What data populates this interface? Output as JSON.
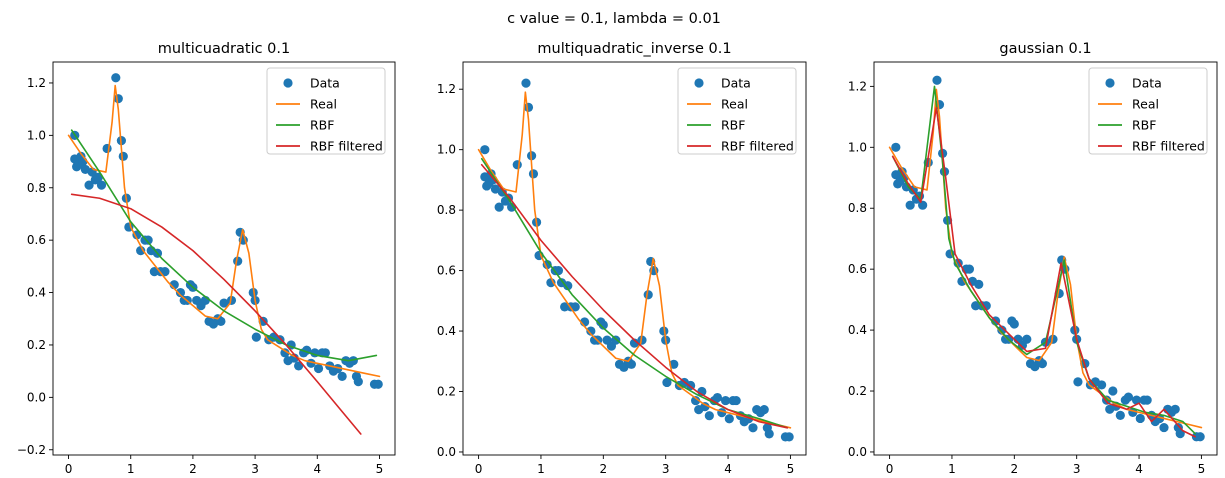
{
  "suptitle": "c value = 0.1, lambda = 0.01",
  "chart_data": [
    {
      "type": "line",
      "title": "multicuadratic 0.1",
      "xlim": [
        -0.25,
        5.25
      ],
      "ylim": [
        -0.22,
        1.28
      ],
      "xticks": [
        0,
        1,
        2,
        3,
        4,
        5
      ],
      "yticks": [
        -0.2,
        0.0,
        0.2,
        0.4,
        0.6,
        0.8,
        1.0,
        1.2
      ],
      "ytick_labels": [
        "−0.2",
        "0.0",
        "0.2",
        "0.4",
        "0.6",
        "0.8",
        "1.0",
        "1.2"
      ],
      "legend": {
        "position": "top-right",
        "entries": [
          "Data",
          "Real",
          "RBF",
          "RBF filtered"
        ]
      },
      "series": [
        {
          "name": "Data",
          "kind": "scatter",
          "color": "#1f77b4",
          "ref": "data"
        },
        {
          "name": "Real",
          "kind": "line",
          "color": "#ff7f0e",
          "ref": "real"
        },
        {
          "name": "RBF",
          "kind": "line",
          "color": "#2ca02c",
          "x": [
            0.05,
            0.5,
            1.0,
            1.5,
            2.0,
            2.5,
            3.0,
            3.5,
            4.0,
            4.5,
            4.95
          ],
          "y": [
            1.02,
            0.86,
            0.67,
            0.53,
            0.42,
            0.33,
            0.26,
            0.2,
            0.16,
            0.14,
            0.16
          ]
        },
        {
          "name": "RBF filtered",
          "kind": "line",
          "color": "#d62728",
          "x": [
            0.05,
            0.5,
            1.0,
            1.5,
            2.0,
            2.5,
            3.0,
            3.5,
            4.0,
            4.35,
            4.7
          ],
          "y": [
            0.775,
            0.76,
            0.72,
            0.65,
            0.56,
            0.45,
            0.33,
            0.2,
            0.06,
            -0.04,
            -0.14
          ]
        }
      ]
    },
    {
      "type": "line",
      "title": "multiquadratic_inverse 0.1",
      "xlim": [
        -0.25,
        5.25
      ],
      "ylim": [
        -0.01,
        1.29
      ],
      "xticks": [
        0,
        1,
        2,
        3,
        4,
        5
      ],
      "yticks": [
        0.0,
        0.2,
        0.4,
        0.6,
        0.8,
        1.0,
        1.2
      ],
      "ytick_labels": [
        "0.0",
        "0.2",
        "0.4",
        "0.6",
        "0.8",
        "1.0",
        "1.2"
      ],
      "legend": {
        "position": "top-right",
        "entries": [
          "Data",
          "Real",
          "RBF",
          "RBF filtered"
        ]
      },
      "series": [
        {
          "name": "Data",
          "kind": "scatter",
          "color": "#1f77b4",
          "ref": "data"
        },
        {
          "name": "Real",
          "kind": "line",
          "color": "#ff7f0e",
          "ref": "real"
        },
        {
          "name": "RBF",
          "kind": "line",
          "color": "#2ca02c",
          "x": [
            0.05,
            0.5,
            1.0,
            1.5,
            2.0,
            2.5,
            3.0,
            3.5,
            4.0,
            4.5,
            4.95
          ],
          "y": [
            0.97,
            0.83,
            0.66,
            0.52,
            0.41,
            0.32,
            0.25,
            0.19,
            0.14,
            0.11,
            0.08
          ]
        },
        {
          "name": "RBF filtered",
          "kind": "line",
          "color": "#d62728",
          "x": [
            0.05,
            0.5,
            1.0,
            1.5,
            2.0,
            2.5,
            3.0,
            3.5,
            4.0,
            4.5,
            4.95
          ],
          "y": [
            0.95,
            0.84,
            0.7,
            0.58,
            0.47,
            0.37,
            0.28,
            0.2,
            0.14,
            0.1,
            0.08
          ]
        }
      ]
    },
    {
      "type": "line",
      "title": "gaussian 0.1",
      "xlim": [
        -0.25,
        5.25
      ],
      "ylim": [
        -0.01,
        1.28
      ],
      "xticks": [
        0,
        1,
        2,
        3,
        4,
        5
      ],
      "yticks": [
        0.0,
        0.2,
        0.4,
        0.6,
        0.8,
        1.0,
        1.2
      ],
      "ytick_labels": [
        "0.0",
        "0.2",
        "0.4",
        "0.6",
        "0.8",
        "1.0",
        "1.2"
      ],
      "legend": {
        "position": "top-right",
        "entries": [
          "Data",
          "Real",
          "RBF",
          "RBF filtered"
        ]
      },
      "series": [
        {
          "name": "Data",
          "kind": "scatter",
          "color": "#1f77b4",
          "ref": "data"
        },
        {
          "name": "Real",
          "kind": "line",
          "color": "#ff7f0e",
          "ref": "real"
        },
        {
          "name": "RBF",
          "kind": "line",
          "color": "#2ca02c",
          "x": [
            0.05,
            0.3,
            0.5,
            0.72,
            0.85,
            0.95,
            1.05,
            1.3,
            1.6,
            1.9,
            2.2,
            2.5,
            2.8,
            3.0,
            3.2,
            3.5,
            3.8,
            4.1,
            4.4,
            4.7,
            4.9
          ],
          "y": [
            0.97,
            0.87,
            0.83,
            1.2,
            0.95,
            0.7,
            0.62,
            0.53,
            0.44,
            0.37,
            0.32,
            0.36,
            0.63,
            0.36,
            0.24,
            0.17,
            0.15,
            0.13,
            0.12,
            0.1,
            0.06
          ]
        },
        {
          "name": "RBF filtered",
          "kind": "line",
          "color": "#d62728",
          "x": [
            0.05,
            0.3,
            0.5,
            0.75,
            0.9,
            1.05,
            1.3,
            1.6,
            1.9,
            2.2,
            2.5,
            2.75,
            3.0,
            3.2,
            3.5,
            3.8,
            4.0,
            4.2,
            4.4,
            4.7,
            4.9
          ],
          "y": [
            0.97,
            0.88,
            0.82,
            1.13,
            0.9,
            0.65,
            0.55,
            0.45,
            0.39,
            0.33,
            0.34,
            0.62,
            0.37,
            0.24,
            0.16,
            0.14,
            0.16,
            0.1,
            0.14,
            0.07,
            0.05
          ]
        }
      ]
    }
  ],
  "shared": {
    "real": {
      "x": [
        0.0,
        0.2,
        0.4,
        0.6,
        0.7,
        0.75,
        0.8,
        0.9,
        1.0,
        1.2,
        1.4,
        1.6,
        1.8,
        2.0,
        2.2,
        2.4,
        2.6,
        2.7,
        2.8,
        2.9,
        3.0,
        3.1,
        3.2,
        3.4,
        3.6,
        3.8,
        4.0,
        4.2,
        4.4,
        4.6,
        4.8,
        5.0
      ],
      "y": [
        1.0,
        0.93,
        0.87,
        0.86,
        1.05,
        1.19,
        1.1,
        0.8,
        0.65,
        0.56,
        0.5,
        0.44,
        0.39,
        0.35,
        0.31,
        0.3,
        0.36,
        0.52,
        0.64,
        0.55,
        0.37,
        0.26,
        0.22,
        0.19,
        0.16,
        0.14,
        0.13,
        0.12,
        0.11,
        0.1,
        0.09,
        0.08
      ]
    },
    "data": {
      "x": [
        0.1,
        0.1,
        0.13,
        0.17,
        0.2,
        0.23,
        0.27,
        0.33,
        0.38,
        0.43,
        0.48,
        0.53,
        0.62,
        0.76,
        0.8,
        0.85,
        0.88,
        0.93,
        0.97,
        1.1,
        1.16,
        1.23,
        1.28,
        1.33,
        1.38,
        1.43,
        1.48,
        1.55,
        1.7,
        1.8,
        1.86,
        1.91,
        1.96,
        2.0,
        2.06,
        2.13,
        2.2,
        2.26,
        2.33,
        2.4,
        2.45,
        2.5,
        2.62,
        2.72,
        2.76,
        2.81,
        2.97,
        3.0,
        3.02,
        3.13,
        3.22,
        3.3,
        3.4,
        3.48,
        3.53,
        3.58,
        3.63,
        3.7,
        3.78,
        3.83,
        3.9,
        3.96,
        4.02,
        4.08,
        4.13,
        4.2,
        4.26,
        4.33,
        4.4,
        4.46,
        4.52,
        4.58,
        4.63,
        4.66,
        4.92,
        4.98
      ],
      "y": [
        1.0,
        0.91,
        0.88,
        0.89,
        0.92,
        0.9,
        0.87,
        0.81,
        0.86,
        0.83,
        0.84,
        0.81,
        0.95,
        1.22,
        1.14,
        0.98,
        0.92,
        0.76,
        0.65,
        0.62,
        0.56,
        0.6,
        0.6,
        0.56,
        0.48,
        0.55,
        0.48,
        0.48,
        0.43,
        0.4,
        0.37,
        0.37,
        0.43,
        0.42,
        0.37,
        0.35,
        0.37,
        0.29,
        0.28,
        0.3,
        0.29,
        0.36,
        0.37,
        0.52,
        0.63,
        0.6,
        0.4,
        0.37,
        0.23,
        0.29,
        0.22,
        0.23,
        0.22,
        0.17,
        0.14,
        0.2,
        0.15,
        0.12,
        0.17,
        0.18,
        0.13,
        0.17,
        0.11,
        0.17,
        0.17,
        0.12,
        0.1,
        0.11,
        0.08,
        0.14,
        0.13,
        0.14,
        0.08,
        0.06,
        0.05,
        0.05
      ]
    }
  }
}
